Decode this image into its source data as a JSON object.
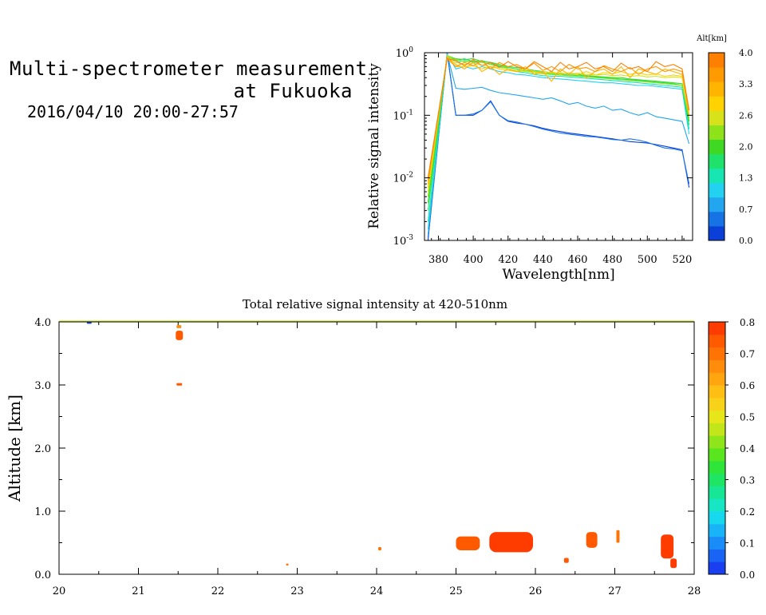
{
  "header": {
    "title_line1": "Multi-spectrometer measurement",
    "title_line2": "at Fukuoka",
    "date_range": "2016/04/10 20:00-27:57"
  },
  "chart_data": [
    {
      "type": "line",
      "xlabel": "Wavelength[nm]",
      "ylabel": "Relative signal intensity",
      "xlim": [
        372,
        526
      ],
      "ylim": [
        0.001,
        1
      ],
      "yscale": "log",
      "x_ticks": [
        "380",
        "400",
        "420",
        "440",
        "460",
        "480",
        "500",
        "520"
      ],
      "y_ticks": [
        {
          "base": "10",
          "exp": "-3",
          "value": 0.001
        },
        {
          "base": "10",
          "exp": "-2",
          "value": 0.01
        },
        {
          "base": "10",
          "exp": "-1",
          "value": 0.1
        },
        {
          "base": "10",
          "exp": "0",
          "value": 1
        }
      ],
      "colorbar": {
        "title": "Alt[km]",
        "tick_labels": [
          "0.0",
          "0.7",
          "1.3",
          "2.0",
          "2.6",
          "3.3",
          "4.0"
        ],
        "colors": [
          "#0a3fd8",
          "#1673e6",
          "#22a6f0",
          "#23d2f0",
          "#17e6b2",
          "#1fe26a",
          "#3fd823",
          "#8ee21a",
          "#d8e21a",
          "#ffd200",
          "#ffb400",
          "#ff9a00",
          "#ff7f00"
        ]
      },
      "x": [
        374,
        385,
        390,
        395,
        400,
        405,
        410,
        415,
        420,
        425,
        430,
        435,
        440,
        445,
        450,
        455,
        460,
        465,
        470,
        475,
        480,
        485,
        490,
        495,
        500,
        505,
        510,
        515,
        520,
        524
      ],
      "series": [
        {
          "color": "#0a3fd8",
          "values": [
            0.001,
            1.0,
            0.1,
            0.1,
            0.1,
            0.12,
            0.17,
            0.1,
            0.08,
            0.075,
            0.072,
            0.068,
            0.062,
            0.058,
            0.055,
            0.052,
            0.05,
            0.048,
            0.046,
            0.044,
            0.042,
            0.04,
            0.038,
            0.037,
            0.036,
            0.034,
            0.032,
            0.03,
            0.028,
            0.007
          ]
        },
        {
          "color": "#1673e6",
          "values": [
            0.0011,
            1.0,
            0.1,
            0.1,
            0.105,
            0.12,
            0.165,
            0.1,
            0.082,
            0.078,
            0.072,
            0.066,
            0.06,
            0.056,
            0.052,
            0.05,
            0.048,
            0.046,
            0.045,
            0.043,
            0.041,
            0.04,
            0.042,
            0.04,
            0.037,
            0.033,
            0.03,
            0.029,
            0.027,
            0.008
          ]
        },
        {
          "color": "#22a6f0",
          "values": [
            0.0012,
            0.95,
            0.27,
            0.26,
            0.27,
            0.28,
            0.25,
            0.23,
            0.22,
            0.21,
            0.2,
            0.19,
            0.18,
            0.19,
            0.17,
            0.15,
            0.16,
            0.14,
            0.13,
            0.14,
            0.12,
            0.125,
            0.11,
            0.1,
            0.11,
            0.095,
            0.09,
            0.085,
            0.08,
            0.035
          ]
        },
        {
          "color": "#23d2f0",
          "values": [
            0.0015,
            0.95,
            0.55,
            0.6,
            0.55,
            0.6,
            0.55,
            0.5,
            0.48,
            0.45,
            0.44,
            0.42,
            0.4,
            0.39,
            0.38,
            0.37,
            0.36,
            0.35,
            0.34,
            0.33,
            0.33,
            0.32,
            0.31,
            0.3,
            0.3,
            0.29,
            0.28,
            0.27,
            0.26,
            0.05
          ]
        },
        {
          "color": "#17e6b2",
          "values": [
            0.002,
            0.9,
            0.7,
            0.75,
            0.7,
            0.7,
            0.65,
            0.6,
            0.55,
            0.5,
            0.48,
            0.45,
            0.43,
            0.42,
            0.42,
            0.41,
            0.4,
            0.39,
            0.38,
            0.37,
            0.36,
            0.35,
            0.34,
            0.33,
            0.32,
            0.31,
            0.3,
            0.29,
            0.28,
            0.06
          ]
        },
        {
          "color": "#1fe26a",
          "values": [
            0.003,
            0.9,
            0.75,
            0.8,
            0.72,
            0.75,
            0.68,
            0.62,
            0.58,
            0.55,
            0.52,
            0.5,
            0.48,
            0.46,
            0.45,
            0.44,
            0.43,
            0.42,
            0.41,
            0.4,
            0.39,
            0.38,
            0.37,
            0.36,
            0.35,
            0.34,
            0.33,
            0.32,
            0.3,
            0.07
          ]
        },
        {
          "color": "#3fd823",
          "values": [
            0.004,
            0.9,
            0.8,
            0.78,
            0.8,
            0.72,
            0.7,
            0.65,
            0.6,
            0.58,
            0.55,
            0.52,
            0.5,
            0.48,
            0.47,
            0.46,
            0.45,
            0.43,
            0.42,
            0.41,
            0.4,
            0.4,
            0.38,
            0.37,
            0.36,
            0.35,
            0.34,
            0.33,
            0.32,
            0.08
          ]
        },
        {
          "color": "#8ee21a",
          "values": [
            0.005,
            0.9,
            0.78,
            0.72,
            0.74,
            0.7,
            0.65,
            0.66,
            0.55,
            0.5,
            0.52,
            0.48,
            0.46,
            0.45,
            0.44,
            0.43,
            0.42,
            0.41,
            0.4,
            0.39,
            0.38,
            0.37,
            0.36,
            0.35,
            0.34,
            0.33,
            0.32,
            0.31,
            0.3,
            0.09
          ]
        },
        {
          "color": "#d8e21a",
          "values": [
            0.006,
            0.9,
            0.7,
            0.65,
            0.68,
            0.63,
            0.6,
            0.58,
            0.55,
            0.52,
            0.5,
            0.48,
            0.5,
            0.47,
            0.48,
            0.46,
            0.47,
            0.45,
            0.44,
            0.45,
            0.43,
            0.44,
            0.42,
            0.43,
            0.41,
            0.42,
            0.4,
            0.41,
            0.4,
            0.1
          ]
        },
        {
          "color": "#ffd200",
          "values": [
            0.007,
            0.85,
            0.6,
            0.6,
            0.62,
            0.55,
            0.6,
            0.55,
            0.52,
            0.5,
            0.55,
            0.5,
            0.46,
            0.5,
            0.45,
            0.48,
            0.45,
            0.5,
            0.44,
            0.48,
            0.46,
            0.5,
            0.45,
            0.48,
            0.44,
            0.46,
            0.42,
            0.44,
            0.42,
            0.12
          ]
        },
        {
          "color": "#ffb400",
          "values": [
            0.008,
            0.85,
            0.65,
            0.55,
            0.7,
            0.5,
            0.6,
            0.45,
            0.55,
            0.5,
            0.6,
            0.45,
            0.5,
            0.35,
            0.55,
            0.45,
            0.6,
            0.4,
            0.5,
            0.55,
            0.45,
            0.6,
            0.4,
            0.55,
            0.5,
            0.45,
            0.55,
            0.5,
            0.45,
            0.1
          ]
        },
        {
          "color": "#ff9a00",
          "values": [
            0.009,
            0.8,
            0.6,
            0.7,
            0.62,
            0.75,
            0.55,
            0.7,
            0.6,
            0.65,
            0.55,
            0.68,
            0.52,
            0.6,
            0.5,
            0.65,
            0.55,
            0.58,
            0.5,
            0.62,
            0.55,
            0.5,
            0.58,
            0.45,
            0.55,
            0.6,
            0.5,
            0.55,
            0.5,
            0.12
          ]
        },
        {
          "color": "#ff7f00",
          "values": [
            0.01,
            0.8,
            0.75,
            0.62,
            0.78,
            0.62,
            0.7,
            0.58,
            0.72,
            0.6,
            0.55,
            0.72,
            0.6,
            0.5,
            0.7,
            0.55,
            0.6,
            0.7,
            0.55,
            0.6,
            0.5,
            0.68,
            0.55,
            0.6,
            0.5,
            0.72,
            0.6,
            0.65,
            0.55,
            0.12
          ]
        }
      ]
    },
    {
      "type": "heatmap",
      "title": "Total relative signal intensity at 420-510nm",
      "xlabel": "",
      "ylabel": "Altitude [km]",
      "xlim": [
        20,
        28
      ],
      "ylim": [
        0,
        4
      ],
      "x_ticks": [
        "20",
        "21",
        "22",
        "23",
        "24",
        "25",
        "26",
        "27",
        "28"
      ],
      "y_ticks": [
        "0.0",
        "1.0",
        "2.0",
        "3.0",
        "4.0"
      ],
      "colorbar": {
        "tick_labels": [
          "0.0",
          "0.1",
          "0.2",
          "0.3",
          "0.4",
          "0.5",
          "0.6",
          "0.7",
          "0.8"
        ],
        "colors": [
          "#1a3ff0",
          "#1a64f5",
          "#1a8cf8",
          "#19b4f8",
          "#17d8ef",
          "#17e6c4",
          "#17e696",
          "#1ee664",
          "#2ee63a",
          "#5ae61e",
          "#8ee61a",
          "#c2e61a",
          "#e6e61a",
          "#f8d21a",
          "#ffbe14",
          "#ffa50f",
          "#ff8c0a",
          "#ff7305",
          "#ff5a00",
          "#ff3c00"
        ]
      },
      "cells": [
        {
          "x": 20.35,
          "y": 3.97,
          "w": 0.06,
          "h": 0.04,
          "value": 0.0
        },
        {
          "x": 20.0,
          "y": 4.0,
          "w": 8.0,
          "h": 0.02,
          "value": 0.45
        },
        {
          "x": 21.47,
          "y": 3.71,
          "w": 0.09,
          "h": 0.15,
          "value": 0.72
        },
        {
          "x": 21.48,
          "y": 3.9,
          "w": 0.06,
          "h": 0.05,
          "value": 0.65
        },
        {
          "x": 21.48,
          "y": 2.99,
          "w": 0.07,
          "h": 0.04,
          "value": 0.75
        },
        {
          "x": 25.0,
          "y": 0.38,
          "w": 0.3,
          "h": 0.22,
          "value": 0.75
        },
        {
          "x": 25.42,
          "y": 0.35,
          "w": 0.55,
          "h": 0.32,
          "value": 0.78
        },
        {
          "x": 26.64,
          "y": 0.42,
          "w": 0.14,
          "h": 0.25,
          "value": 0.75
        },
        {
          "x": 27.58,
          "y": 0.25,
          "w": 0.16,
          "h": 0.38,
          "value": 0.78
        },
        {
          "x": 27.02,
          "y": 0.5,
          "w": 0.04,
          "h": 0.2,
          "value": 0.7
        },
        {
          "x": 26.36,
          "y": 0.18,
          "w": 0.06,
          "h": 0.08,
          "value": 0.75
        },
        {
          "x": 24.02,
          "y": 0.38,
          "w": 0.04,
          "h": 0.05,
          "value": 0.7
        },
        {
          "x": 22.86,
          "y": 0.14,
          "w": 0.03,
          "h": 0.03,
          "value": 0.7
        },
        {
          "x": 27.7,
          "y": 0.1,
          "w": 0.08,
          "h": 0.15,
          "value": 0.78
        }
      ]
    }
  ]
}
